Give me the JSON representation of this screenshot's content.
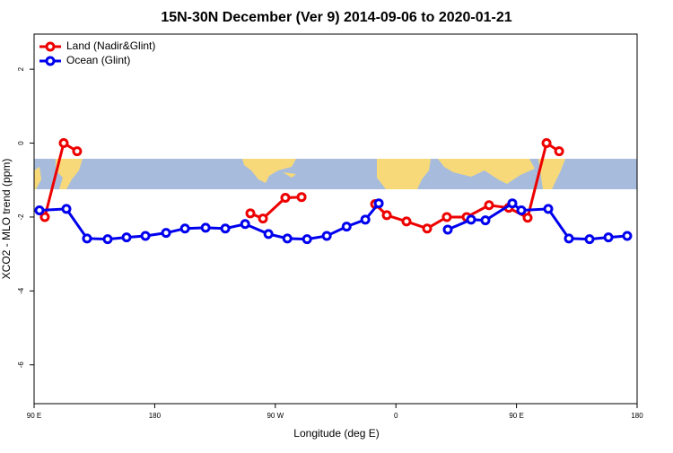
{
  "chart_data": {
    "type": "line",
    "title": "15N-30N December (Ver 9)   2014-09-06 to 2020-01-21",
    "x_label": "Longitude (deg E)",
    "y_label": "XCO2 - MLO trend (ppm)",
    "xlim": [
      90,
      540
    ],
    "xticks": [
      {
        "value": 90,
        "label": "90 E"
      },
      {
        "value": 180,
        "label": "180"
      },
      {
        "value": 270,
        "label": "90 W"
      },
      {
        "value": 360,
        "label": "0"
      },
      {
        "value": 450,
        "label": "90 E"
      },
      {
        "value": 540,
        "label": "180"
      }
    ],
    "ylim": [
      -7.05,
      2.95
    ],
    "yticks": [
      2,
      0,
      -2,
      -4,
      -6
    ],
    "legend": "top-left",
    "series": [
      {
        "name": "Land (Nadir&Glint)",
        "color": "#ee0000",
        "x": [
          98.0,
          112.1,
          122.1,
          null,
          251.4,
          260.8,
          277.5,
          289.6,
          null,
          344.5,
          353.2,
          367.9,
          383.3,
          398.0,
          412.8,
          429.5,
          444.2,
          458.3,
          472.4,
          481.8
        ],
        "values": [
          -2.0,
          0,
          -0.22,
          null,
          -1.9,
          -2.04,
          -1.48,
          -1.46,
          null,
          -1.65,
          -1.95,
          -2.12,
          -2.31,
          -2.0,
          -2.0,
          -1.68,
          -1.75,
          -2.02,
          0,
          -0.22
        ]
      },
      {
        "name": "Ocean (Glint)",
        "color": "#0000ee",
        "x": [
          94.0,
          114.1,
          129.5,
          144.9,
          159.0,
          173.1,
          188.5,
          202.6,
          218.0,
          232.7,
          247.5,
          264.9,
          279.0,
          293.7,
          308.4,
          323.2,
          337.2,
          347.2,
          null,
          398.7,
          416.1,
          426.8,
          446.9,
          453.6,
          473.7,
          489.1,
          504.5,
          518.6,
          532.6
        ],
        "values": [
          -1.82,
          -1.78,
          -2.58,
          -2.6,
          -2.55,
          -2.51,
          -2.43,
          -2.31,
          -2.29,
          -2.31,
          -2.19,
          -2.46,
          -2.58,
          -2.6,
          -2.51,
          -2.26,
          -2.07,
          -1.63,
          null,
          -2.34,
          -2.07,
          -2.09,
          -1.63,
          -1.82,
          -1.78,
          -2.58,
          -2.6,
          -2.55,
          -2.51
        ]
      }
    ]
  }
}
